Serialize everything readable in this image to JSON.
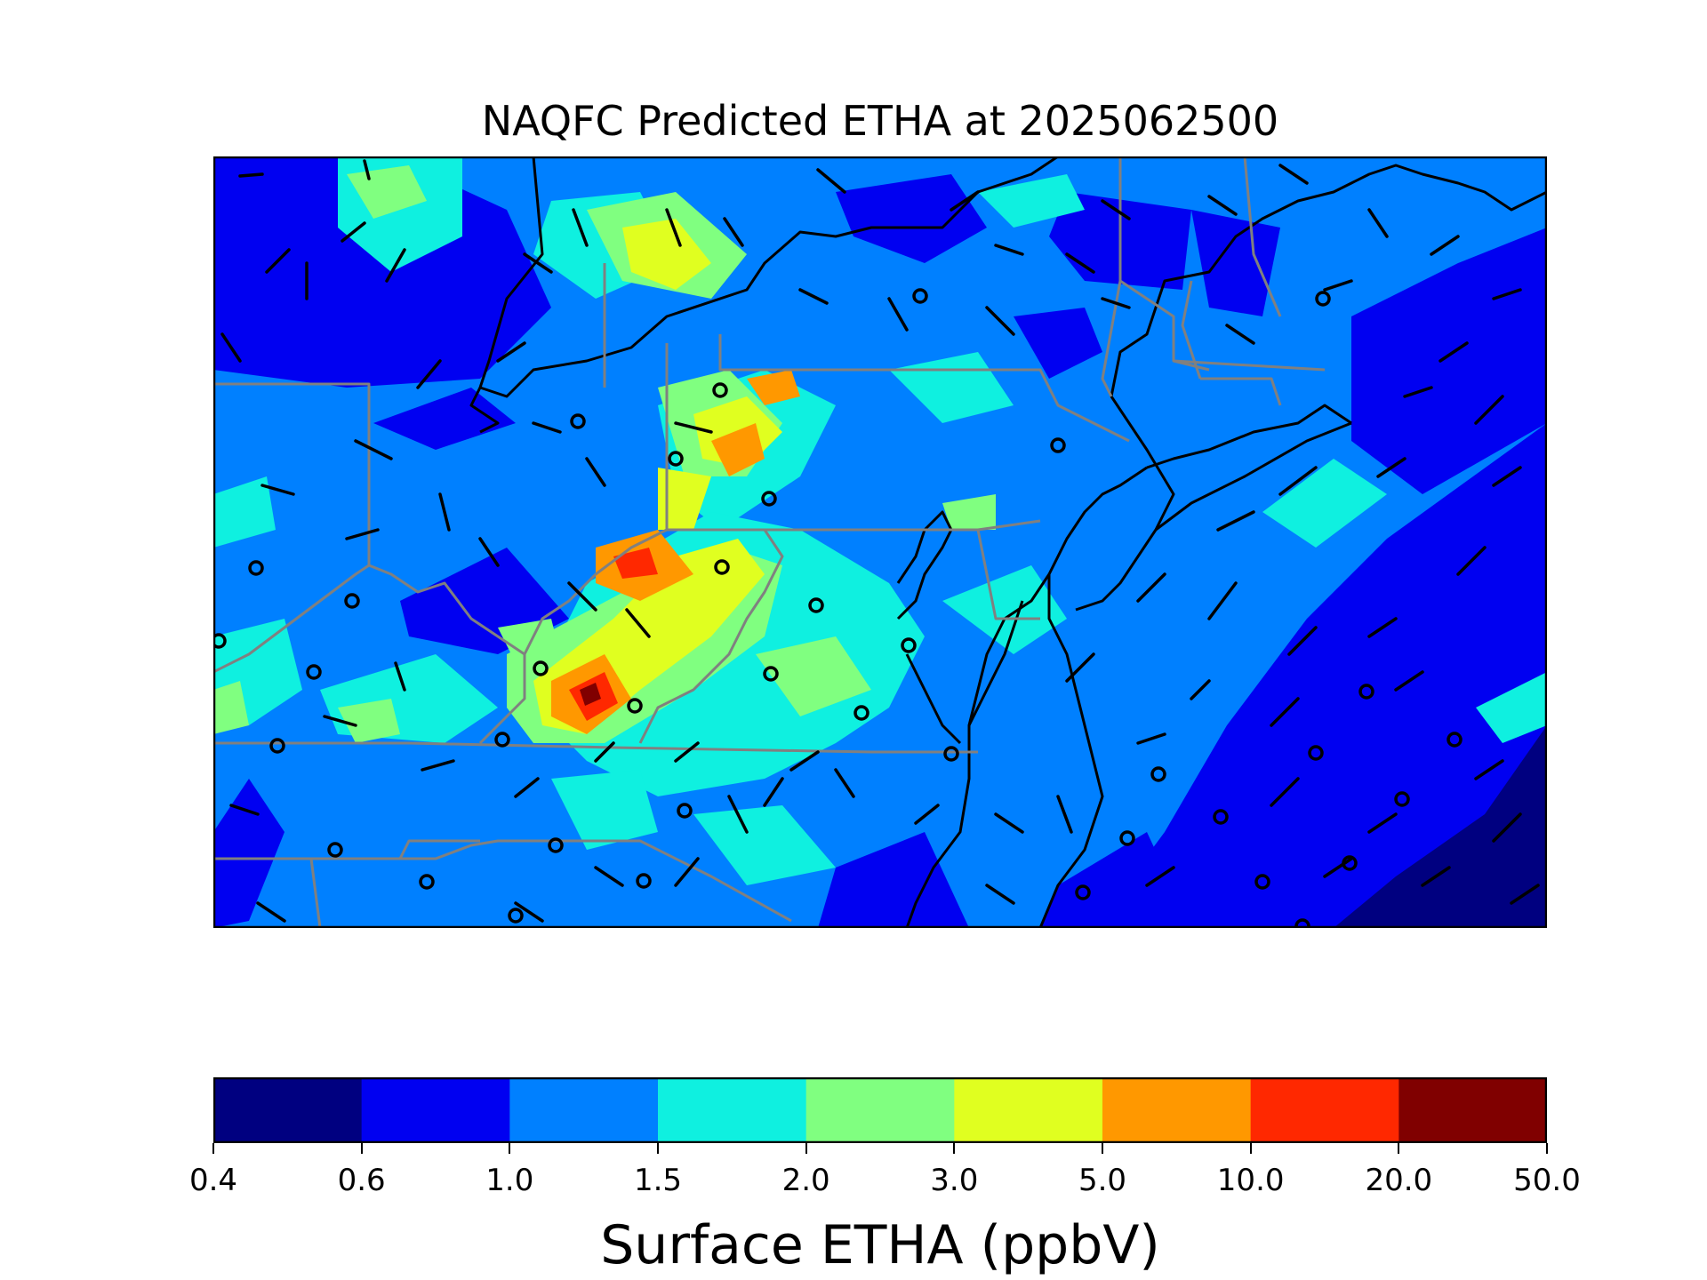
{
  "title": "NAQFC Predicted ETHA at 2025062500",
  "colorbar": {
    "label": "Surface ETHA (ppbV)",
    "ticks": [
      "0.4",
      "0.6",
      "1.0",
      "1.5",
      "2.0",
      "3.0",
      "5.0",
      "10.0",
      "20.0",
      "50.0"
    ],
    "colors": [
      "#000080",
      "#0000f1",
      "#0080ff",
      "#0ff0e0",
      "#80ff80",
      "#e0ff20",
      "#ff9800",
      "#ff2800",
      "#800000"
    ]
  },
  "map": {
    "field": "Surface ETHA concentration",
    "units": "ppbV",
    "background_level_color": "#0080ff",
    "coastline_color": "#000000",
    "state_border_color": "#808080",
    "wind_barb_color": "#000000"
  }
}
